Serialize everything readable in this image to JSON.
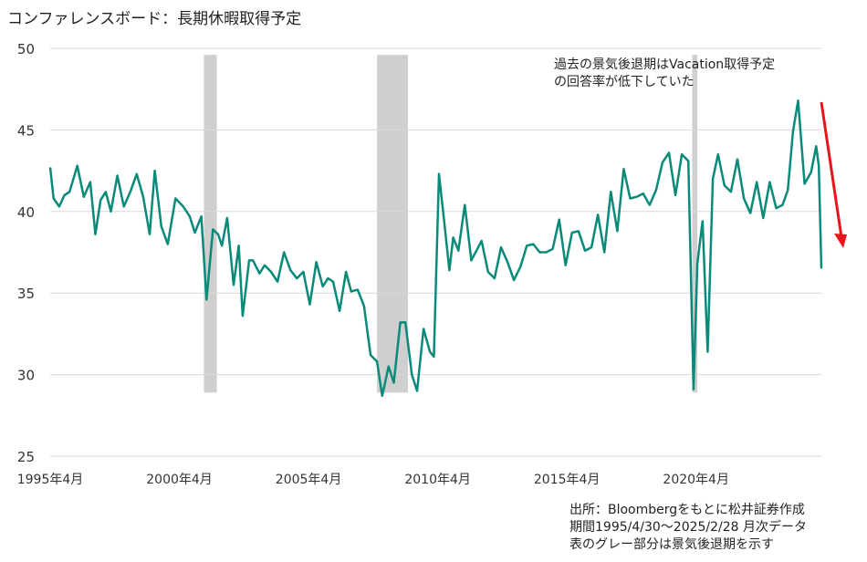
{
  "title": "コンファレンスボード：長期休暇取得予定",
  "annotation": [
    "過去の景気後退期はVacation取得予定",
    "の回答率が低下していた"
  ],
  "source": [
    "出所：Bloombergをもとに松井証券作成",
    "期間1995/4/30～2025/2/28  月次データ",
    "表のグレー部分は景気後退期を示す"
  ],
  "chart_data": {
    "type": "line",
    "title": "コンファレンスボード：長期休暇取得予定",
    "xlabel": "",
    "ylabel": "",
    "ylim": [
      25,
      50
    ],
    "yticks": [
      25,
      30,
      35,
      40,
      45,
      50
    ],
    "xrange": [
      1995.25,
      2025.1
    ],
    "xticks": [
      {
        "value": 1995.25,
        "label": "1995年4月"
      },
      {
        "value": 2000.25,
        "label": "2000年4月"
      },
      {
        "value": 2005.25,
        "label": "2005年4月"
      },
      {
        "value": 2010.25,
        "label": "2010年4月"
      },
      {
        "value": 2015.25,
        "label": "2015年4月"
      },
      {
        "value": 2020.25,
        "label": "2020年4月"
      }
    ],
    "grid": true,
    "recessions": [
      [
        2001.2,
        2001.7
      ],
      [
        2007.9,
        2009.1
      ],
      [
        2020.1,
        2020.3
      ]
    ],
    "color_line": "#0a8a78",
    "color_recession": "#cfcfcf",
    "color_arrow": "#e8141b",
    "series": [
      {
        "x": [
          1995.25,
          1995.38,
          1995.6,
          1995.8,
          1996.0,
          1996.3,
          1996.55,
          1996.8,
          1997.0,
          1997.2,
          1997.4,
          1997.6,
          1997.85,
          1998.1,
          1998.35,
          1998.6,
          1998.85,
          1999.1,
          1999.3,
          1999.55,
          1999.8,
          2000.1,
          2000.4,
          2000.65,
          2000.85,
          2001.1,
          2001.3,
          2001.55,
          2001.75,
          2001.9,
          2002.1,
          2002.35,
          2002.55,
          2002.7,
          2002.95,
          2003.1,
          2003.35,
          2003.55,
          2003.8,
          2004.05,
          2004.3,
          2004.55,
          2004.8,
          2005.05,
          2005.3,
          2005.55,
          2005.8,
          2006.0,
          2006.2,
          2006.45,
          2006.7,
          2006.9,
          2007.15,
          2007.4,
          2007.65,
          2007.9,
          2008.1,
          2008.35,
          2008.55,
          2008.8,
          2009.0,
          2009.25,
          2009.45,
          2009.7,
          2009.95,
          2010.1,
          2010.3,
          2010.5,
          2010.7,
          2010.85,
          2011.05,
          2011.3,
          2011.55,
          2011.75,
          2011.95,
          2012.2,
          2012.45,
          2012.7,
          2012.95,
          2013.2,
          2013.45,
          2013.7,
          2013.95,
          2014.2,
          2014.45,
          2014.7,
          2014.95,
          2015.2,
          2015.45,
          2015.7,
          2015.95,
          2016.2,
          2016.45,
          2016.7,
          2016.95,
          2017.2,
          2017.45,
          2017.7,
          2017.95,
          2018.2,
          2018.45,
          2018.7,
          2018.95,
          2019.2,
          2019.45,
          2019.7,
          2019.95,
          2020.15,
          2020.3,
          2020.5,
          2020.7,
          2020.9,
          2021.1,
          2021.35,
          2021.6,
          2021.85,
          2022.1,
          2022.35,
          2022.6,
          2022.85,
          2023.1,
          2023.35,
          2023.6,
          2023.8,
          2024.0,
          2024.2,
          2024.45,
          2024.7,
          2024.9,
          2025.0,
          2025.1
        ],
        "values": [
          42.7,
          40.8,
          40.3,
          41.0,
          41.2,
          42.8,
          40.9,
          41.8,
          38.6,
          40.7,
          41.2,
          40.0,
          42.2,
          40.3,
          41.2,
          42.3,
          40.9,
          38.6,
          42.5,
          39.1,
          38.0,
          40.8,
          40.3,
          39.7,
          38.7,
          39.7,
          34.6,
          38.9,
          38.6,
          37.9,
          39.6,
          35.5,
          37.9,
          33.6,
          37.0,
          37.0,
          36.2,
          36.7,
          36.3,
          35.7,
          37.5,
          36.4,
          35.9,
          36.3,
          34.3,
          36.9,
          35.4,
          35.9,
          35.7,
          33.9,
          36.3,
          35.1,
          35.2,
          34.2,
          31.2,
          30.8,
          28.7,
          30.5,
          29.5,
          33.2,
          33.2,
          30.0,
          29.0,
          32.8,
          31.4,
          31.1,
          42.3,
          39.4,
          36.4,
          38.4,
          37.6,
          40.4,
          37.0,
          37.6,
          38.2,
          36.3,
          35.9,
          37.8,
          36.9,
          35.8,
          36.6,
          37.9,
          38.0,
          37.5,
          37.5,
          37.7,
          39.5,
          36.7,
          38.7,
          38.8,
          37.6,
          37.8,
          39.8,
          37.5,
          41.2,
          38.8,
          42.6,
          40.8,
          40.9,
          41.1,
          40.4,
          41.3,
          43.0,
          43.6,
          41.0,
          43.5,
          43.1,
          29.1,
          36.8,
          39.4,
          31.4,
          42.0,
          43.5,
          41.6,
          41.2,
          43.2,
          40.8,
          39.9,
          41.8,
          39.6,
          41.8,
          40.2,
          40.4,
          41.3,
          44.9,
          46.8,
          41.7,
          42.4,
          44.0,
          42.8,
          36.5
        ]
      }
    ]
  }
}
